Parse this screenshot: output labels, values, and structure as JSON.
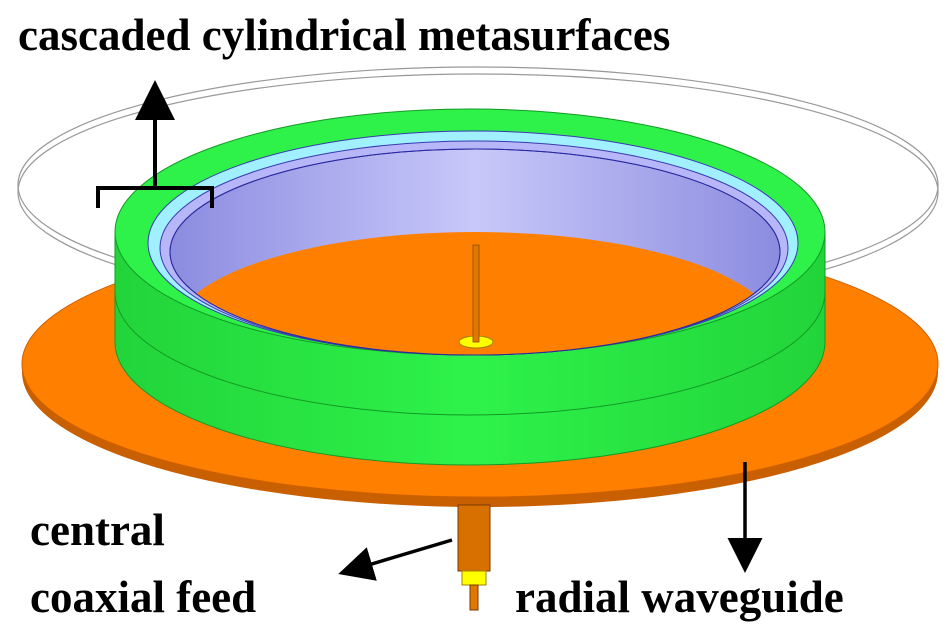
{
  "labels": {
    "metasurfaces": "cascaded cylindrical metasurfaces",
    "feed_line1": "central",
    "feed_line2": "coaxial feed",
    "waveguide": "radial waveguide"
  }
}
